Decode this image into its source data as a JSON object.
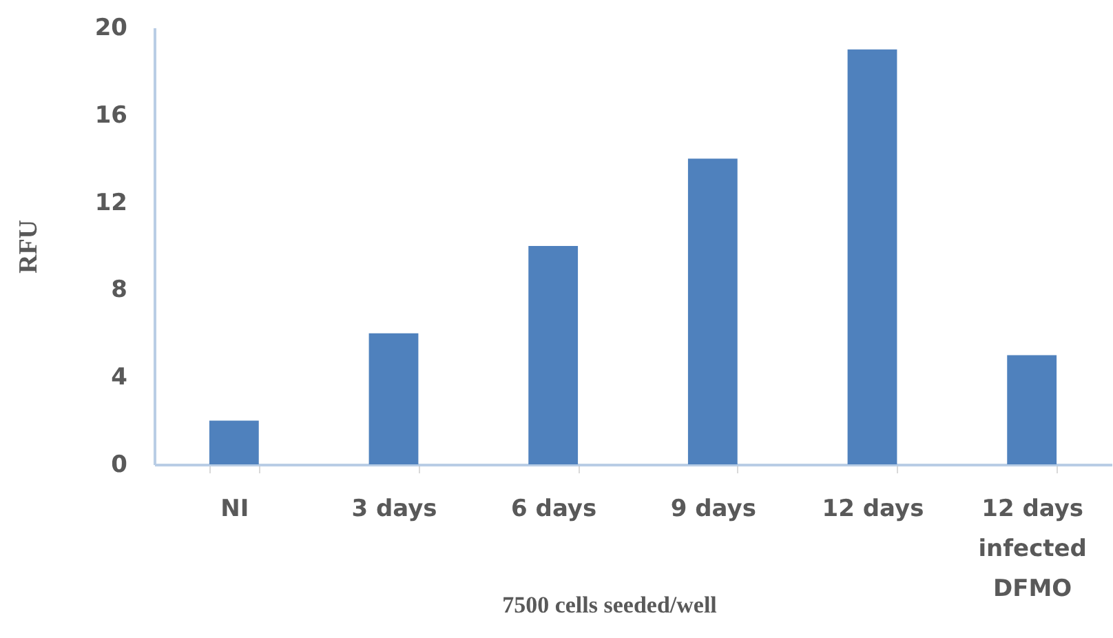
{
  "chart_data": {
    "type": "bar",
    "xlabel": "7500 cells seeded/well",
    "ylabel": "RFU",
    "categories": [
      "NI",
      "3 days",
      "6 days",
      "9 days",
      "12 days",
      "12 days\ninfected\nDFMO"
    ],
    "values": [
      2,
      6,
      10,
      14,
      19,
      5
    ],
    "color": "#4f81bd",
    "ylim": [
      0,
      20
    ],
    "yticks": [
      0,
      4,
      8,
      12,
      16,
      20
    ],
    "grid": false
  }
}
